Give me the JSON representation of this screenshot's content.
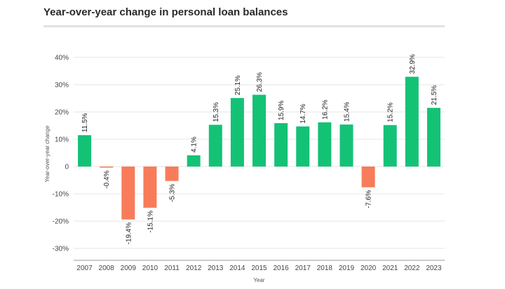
{
  "title": "Year-over-year change in personal loan balances",
  "chart_data": {
    "type": "bar",
    "title": "Year-over-year change in personal loan balances",
    "xlabel": "Year",
    "ylabel": "Year-over-year change",
    "categories": [
      "2007",
      "2008",
      "2009",
      "2010",
      "2011",
      "2012",
      "2013",
      "2014",
      "2015",
      "2016",
      "2017",
      "2018",
      "2019",
      "2020",
      "2021",
      "2022",
      "2023"
    ],
    "values": [
      11.5,
      -0.4,
      -19.4,
      -15.1,
      -5.3,
      4.1,
      15.3,
      25.1,
      26.3,
      15.9,
      14.7,
      16.2,
      15.4,
      -7.6,
      15.2,
      32.9,
      21.5
    ],
    "data_labels": [
      "11.5%",
      "-0.4%",
      "-19.4%",
      "-15.1%",
      "-5.3%",
      "4.1%",
      "15.3%",
      "25.1%",
      "26.3%",
      "15.9%",
      "14.7%",
      "16.2%",
      "15.4%",
      "-7.6%",
      "15.2%",
      "32.9%",
      "21.5%"
    ],
    "yticks": [
      40,
      30,
      20,
      10,
      0,
      -10,
      -20,
      -30
    ],
    "ytick_labels": [
      "40%",
      "30%",
      "20%",
      "10%",
      "0",
      "-10%",
      "-20%",
      "-30%"
    ],
    "ylim": [
      -35,
      45
    ],
    "grid": true,
    "colors": {
      "positive": "#14c276",
      "negative": "#f87c5a",
      "grid": "#e6e6e6",
      "axis": "#9a9a9a"
    }
  }
}
